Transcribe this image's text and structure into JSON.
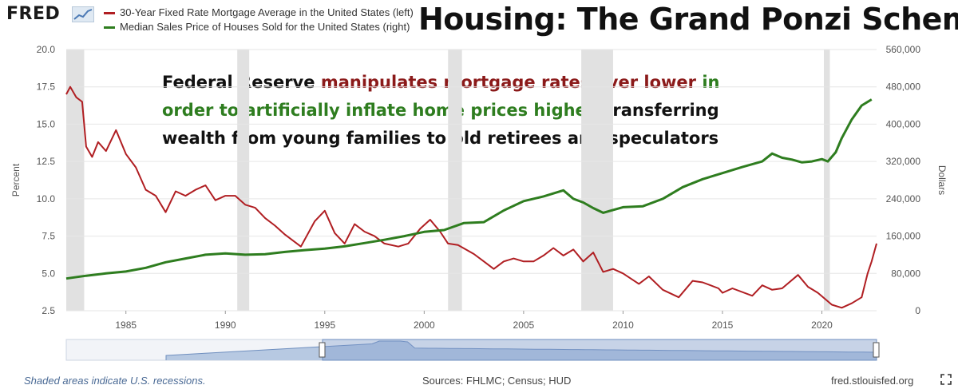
{
  "logo": {
    "text": "FRED",
    "icon": "chart-logo-icon"
  },
  "legend": [
    {
      "label": "30-Year Fixed Rate Mortgage Average in the United States (left)",
      "color": "#b01e22"
    },
    {
      "label": "Median Sales Price of Houses Sold for the United States (right)",
      "color": "#2e7d1f"
    }
  ],
  "headline": "Housing: The Grand Ponzi Scheme",
  "annotation": {
    "part1": "Federal Reserve ",
    "part2": "manipulates mortgage rates ever lower",
    "part3": " in order to artificially inflate home prices higher",
    "part4": ", transferring wealth from young families to old retirees and speculators"
  },
  "footer": {
    "recessions_note": "Shaded areas indicate U.S. recessions.",
    "sources": "Sources: FHLMC; Census; HUD",
    "site": "fred.stlouisfed.org"
  },
  "chart_data": {
    "type": "line",
    "x_range": [
      1982.0,
      2022.75
    ],
    "x_ticks": [
      1985,
      1990,
      1995,
      2000,
      2005,
      2010,
      2015,
      2020
    ],
    "y_left": {
      "label": "Percent",
      "range": [
        2.5,
        20.0
      ],
      "ticks": [
        "2.5",
        "5.0",
        "7.5",
        "10.0",
        "12.5",
        "15.0",
        "17.5",
        "20.0"
      ]
    },
    "y_right": {
      "label": "Dollars",
      "range": [
        0,
        560000
      ],
      "ticks": [
        "0",
        "80,000",
        "160,000",
        "240,000",
        "320,000",
        "400,000",
        "480,000",
        "560,000"
      ]
    },
    "recessions": [
      [
        1982.0,
        1982.9
      ],
      [
        1990.6,
        1991.2
      ],
      [
        2001.2,
        2001.9
      ],
      [
        2007.9,
        2009.5
      ],
      [
        2020.1,
        2020.4
      ]
    ],
    "grid": true,
    "series": [
      {
        "name": "30-Year Fixed Rate Mortgage Average in the United States (left)",
        "axis": "left",
        "color": "#b01e22",
        "points": [
          [
            1982.0,
            17.0
          ],
          [
            1982.2,
            17.5
          ],
          [
            1982.5,
            16.8
          ],
          [
            1982.8,
            16.5
          ],
          [
            1983.0,
            13.5
          ],
          [
            1983.3,
            12.8
          ],
          [
            1983.6,
            13.8
          ],
          [
            1984.0,
            13.2
          ],
          [
            1984.5,
            14.6
          ],
          [
            1985.0,
            13.0
          ],
          [
            1985.5,
            12.1
          ],
          [
            1986.0,
            10.6
          ],
          [
            1986.5,
            10.2
          ],
          [
            1987.0,
            9.1
          ],
          [
            1987.5,
            10.5
          ],
          [
            1988.0,
            10.2
          ],
          [
            1988.5,
            10.6
          ],
          [
            1989.0,
            10.9
          ],
          [
            1989.5,
            9.9
          ],
          [
            1990.0,
            10.2
          ],
          [
            1990.5,
            10.2
          ],
          [
            1991.0,
            9.6
          ],
          [
            1991.5,
            9.4
          ],
          [
            1992.0,
            8.7
          ],
          [
            1992.5,
            8.2
          ],
          [
            1993.0,
            7.6
          ],
          [
            1993.8,
            6.8
          ],
          [
            1994.5,
            8.5
          ],
          [
            1995.0,
            9.2
          ],
          [
            1995.5,
            7.7
          ],
          [
            1996.0,
            7.0
          ],
          [
            1996.5,
            8.3
          ],
          [
            1997.0,
            7.8
          ],
          [
            1997.5,
            7.5
          ],
          [
            1998.0,
            7.0
          ],
          [
            1998.7,
            6.8
          ],
          [
            1999.2,
            7.0
          ],
          [
            1999.8,
            8.0
          ],
          [
            2000.3,
            8.6
          ],
          [
            2000.8,
            7.8
          ],
          [
            2001.2,
            7.0
          ],
          [
            2001.7,
            6.9
          ],
          [
            2002.5,
            6.3
          ],
          [
            2003.0,
            5.8
          ],
          [
            2003.5,
            5.3
          ],
          [
            2004.0,
            5.8
          ],
          [
            2004.5,
            6.0
          ],
          [
            2005.0,
            5.8
          ],
          [
            2005.5,
            5.8
          ],
          [
            2006.0,
            6.2
          ],
          [
            2006.5,
            6.7
          ],
          [
            2007.0,
            6.2
          ],
          [
            2007.5,
            6.6
          ],
          [
            2008.0,
            5.8
          ],
          [
            2008.5,
            6.4
          ],
          [
            2009.0,
            5.1
          ],
          [
            2009.5,
            5.3
          ],
          [
            2010.0,
            5.0
          ],
          [
            2010.8,
            4.3
          ],
          [
            2011.3,
            4.8
          ],
          [
            2012.0,
            3.9
          ],
          [
            2012.8,
            3.4
          ],
          [
            2013.5,
            4.5
          ],
          [
            2014.0,
            4.4
          ],
          [
            2014.8,
            4.0
          ],
          [
            2015.0,
            3.7
          ],
          [
            2015.5,
            4.0
          ],
          [
            2016.5,
            3.5
          ],
          [
            2017.0,
            4.2
          ],
          [
            2017.5,
            3.9
          ],
          [
            2018.0,
            4.0
          ],
          [
            2018.8,
            4.9
          ],
          [
            2019.3,
            4.1
          ],
          [
            2019.8,
            3.7
          ],
          [
            2020.5,
            2.9
          ],
          [
            2021.0,
            2.7
          ],
          [
            2021.5,
            3.0
          ],
          [
            2022.0,
            3.4
          ],
          [
            2022.3,
            5.0
          ],
          [
            2022.5,
            5.8
          ],
          [
            2022.75,
            7.0
          ]
        ]
      },
      {
        "name": "Median Sales Price of Houses Sold for the United States (right)",
        "axis": "right",
        "color": "#2e7d1f",
        "points": [
          [
            1982.0,
            69000
          ],
          [
            1983.0,
            75000
          ],
          [
            1984.0,
            80000
          ],
          [
            1985.0,
            84000
          ],
          [
            1986.0,
            92000
          ],
          [
            1987.0,
            104000
          ],
          [
            1988.0,
            112000
          ],
          [
            1989.0,
            120000
          ],
          [
            1990.0,
            123000
          ],
          [
            1991.0,
            120000
          ],
          [
            1992.0,
            121000
          ],
          [
            1993.0,
            126000
          ],
          [
            1994.0,
            130000
          ],
          [
            1995.0,
            133000
          ],
          [
            1996.0,
            138000
          ],
          [
            1997.0,
            145000
          ],
          [
            1998.0,
            152000
          ],
          [
            1999.0,
            160000
          ],
          [
            2000.0,
            169000
          ],
          [
            2001.0,
            173000
          ],
          [
            2002.0,
            188000
          ],
          [
            2003.0,
            190000
          ],
          [
            2004.0,
            215000
          ],
          [
            2005.0,
            235000
          ],
          [
            2006.0,
            245000
          ],
          [
            2007.0,
            258000
          ],
          [
            2007.5,
            240000
          ],
          [
            2008.0,
            232000
          ],
          [
            2008.5,
            220000
          ],
          [
            2009.0,
            210000
          ],
          [
            2010.0,
            222000
          ],
          [
            2011.0,
            224000
          ],
          [
            2012.0,
            240000
          ],
          [
            2013.0,
            265000
          ],
          [
            2014.0,
            282000
          ],
          [
            2015.0,
            295000
          ],
          [
            2016.0,
            308000
          ],
          [
            2017.0,
            320000
          ],
          [
            2017.5,
            337000
          ],
          [
            2018.0,
            328000
          ],
          [
            2018.5,
            324000
          ],
          [
            2019.0,
            318000
          ],
          [
            2019.5,
            320000
          ],
          [
            2020.0,
            325000
          ],
          [
            2020.3,
            320000
          ],
          [
            2020.7,
            340000
          ],
          [
            2021.0,
            370000
          ],
          [
            2021.5,
            410000
          ],
          [
            2022.0,
            440000
          ],
          [
            2022.5,
            453000
          ]
        ]
      }
    ]
  }
}
